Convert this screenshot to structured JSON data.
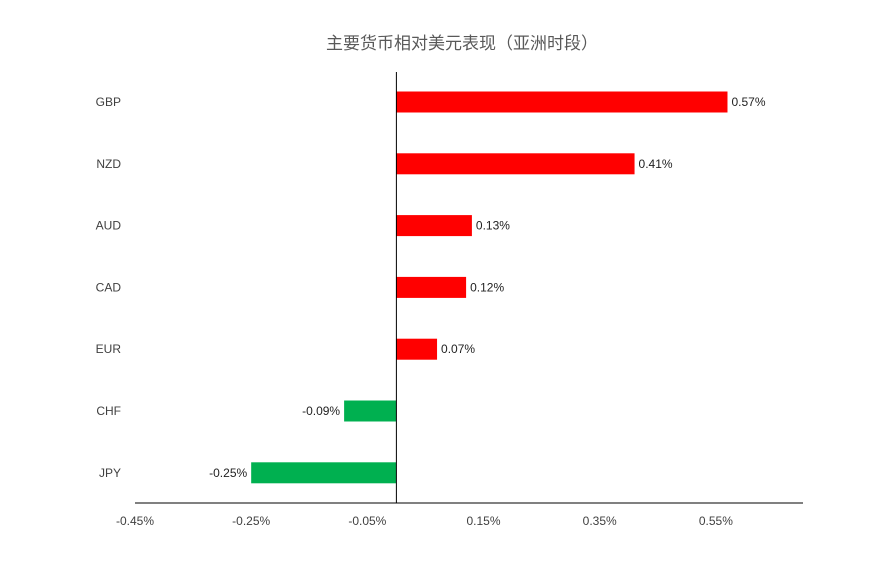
{
  "chart_data": {
    "type": "bar",
    "orientation": "horizontal",
    "title": "主要货币相对美元表现（亚洲时段）",
    "categories": [
      "GBP",
      "NZD",
      "AUD",
      "CAD",
      "EUR",
      "CHF",
      "JPY"
    ],
    "values": [
      0.57,
      0.41,
      0.13,
      0.12,
      0.07,
      -0.09,
      -0.25
    ],
    "value_labels": [
      "0.57%",
      "0.41%",
      "0.13%",
      "0.12%",
      "0.07%",
      "-0.09%",
      "-0.25%"
    ],
    "xlim": [
      -0.45,
      0.7
    ],
    "x_ticks": [
      -0.45,
      -0.25,
      -0.05,
      0.15,
      0.35,
      0.55
    ],
    "x_tick_labels": [
      "-0.45%",
      "-0.25%",
      "-0.05%",
      "0.15%",
      "0.35%",
      "0.55%"
    ],
    "positive_color": "#ff0000",
    "negative_color": "#00b050",
    "grid": false,
    "legend": "none"
  }
}
